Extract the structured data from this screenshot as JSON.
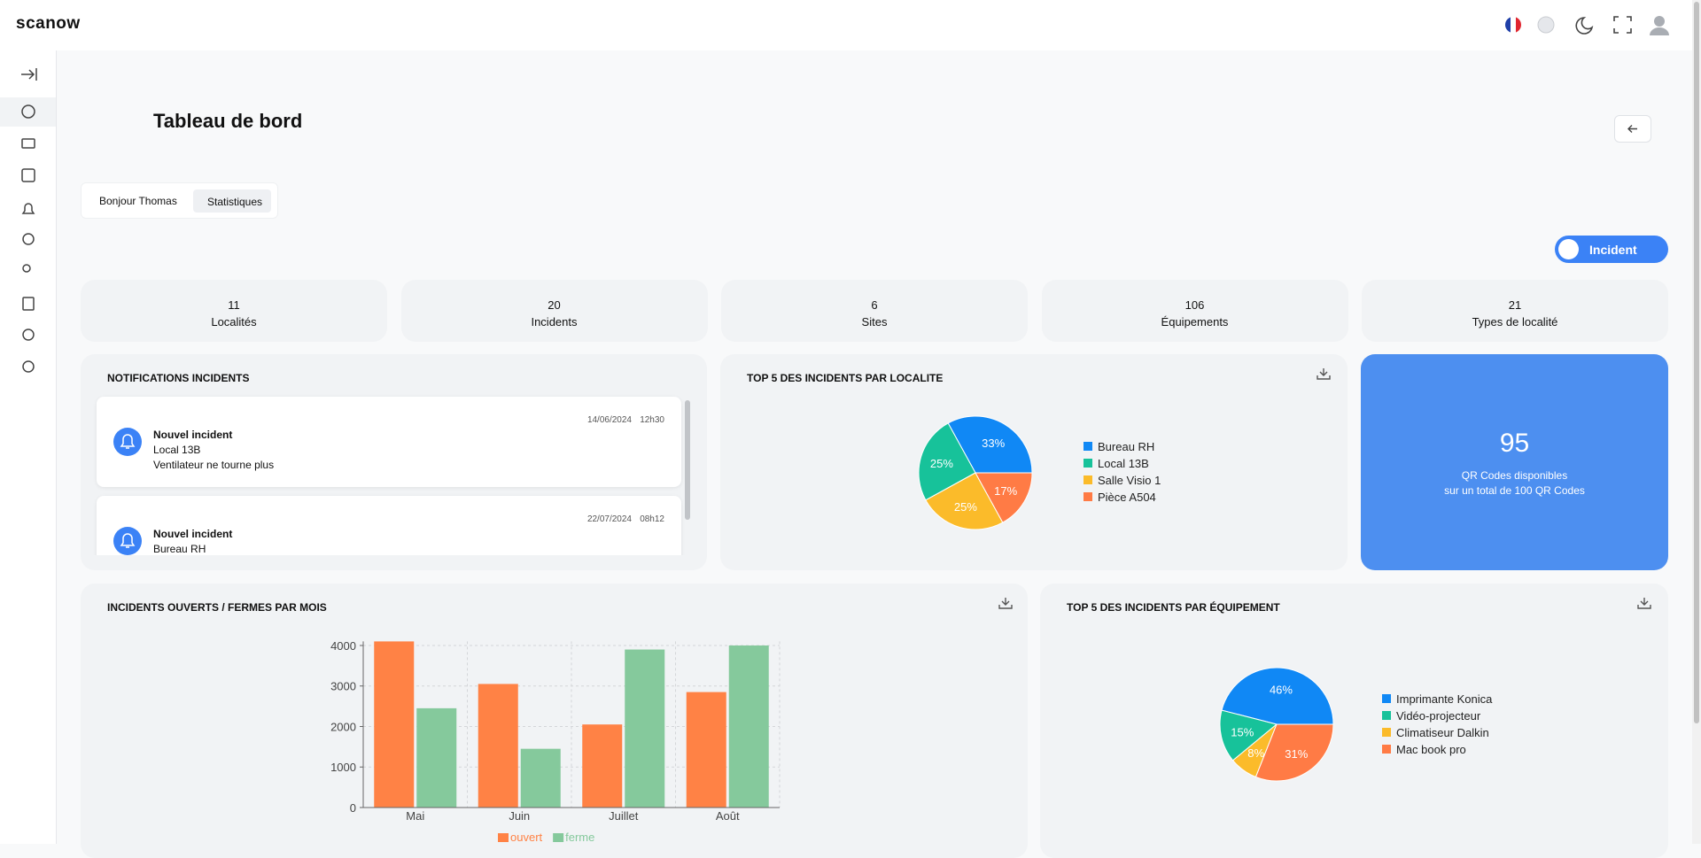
{
  "header": {
    "logo": "scanow"
  },
  "page": {
    "title": "Tableau de bord"
  },
  "tabs": [
    "Bonjour Thomas",
    "Statistiques"
  ],
  "toggle": "Incident",
  "stats": [
    {
      "value": 11,
      "label": "Localités"
    },
    {
      "value": 20,
      "label": "Incidents"
    },
    {
      "value": 6,
      "label": "Sites"
    },
    {
      "value": 106,
      "label": "Équipements"
    },
    {
      "value": 21,
      "label": "Types de localité"
    }
  ],
  "notifications": {
    "title": "NOTIFICATIONS INCIDENTS",
    "items": [
      {
        "date": "14/06/2024",
        "time": "12h30",
        "title": "Nouvel incident",
        "location": "Local 13B",
        "description": "Ventilateur ne tourne plus"
      },
      {
        "date": "22/07/2024",
        "time": "08h12",
        "title": "Nouvel incident",
        "location": "Bureau RH"
      }
    ]
  },
  "pie_localite": {
    "type": "pie",
    "title": "TOP 5 DES INCIDENTS PAR LOCALITE",
    "categories": [
      "Bureau RH",
      "Local 13B",
      "Salle Visio 1",
      "Pièce A504"
    ],
    "values": [
      33,
      25,
      25,
      17
    ],
    "value_labels": [
      "33%",
      "25%",
      "25%",
      "17%"
    ],
    "colors": [
      "#1088f5",
      "#17c29a",
      "#fbbb2a",
      "#ff7b45"
    ]
  },
  "qr": {
    "value": 95,
    "line1": "QR Codes disponibles",
    "line2": "sur un total de 100 QR Codes"
  },
  "bar_chart": {
    "type": "bar",
    "title": "INCIDENTS OUVERTS / FERMES PAR MOIS",
    "categories": [
      "Mai",
      "Juin",
      "Juillet",
      "Août"
    ],
    "series": [
      {
        "name": "ouvert",
        "color": "#ff8245",
        "values": [
          4100,
          3050,
          2050,
          2850
        ]
      },
      {
        "name": "ferme",
        "color": "#85c99c",
        "values": [
          2450,
          1450,
          3900,
          4000
        ]
      }
    ],
    "ylim": [
      0,
      4100
    ],
    "yticks": [
      0,
      1000,
      2000,
      3000,
      4000
    ],
    "grid": true
  },
  "pie_equipement": {
    "type": "pie",
    "title": "TOP 5 DES INCIDENTS PAR ÉQUIPEMENT",
    "categories": [
      "Imprimante Konica",
      "Vidéo-projecteur",
      "Climatiseur Dalkin",
      "Mac book pro"
    ],
    "values": [
      46,
      15,
      8,
      31
    ],
    "value_labels": [
      "46%",
      "15%",
      "8%",
      "31%"
    ],
    "colors": [
      "#1088f5",
      "#17c29a",
      "#fbbb2a",
      "#ff7b45"
    ]
  }
}
